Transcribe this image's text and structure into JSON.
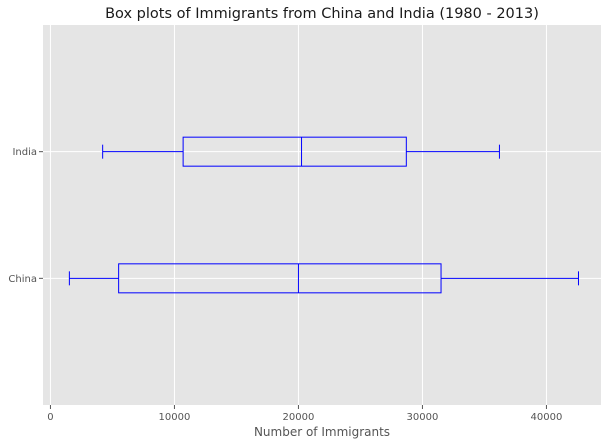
{
  "chart_data": {
    "type": "box",
    "orientation": "horizontal",
    "title": "Box plots of Immigrants from China and India (1980 - 2013)",
    "xlabel": "Number of Immigrants",
    "ylabel": "",
    "xlim": [
      -600,
      44400
    ],
    "xticks": [
      0,
      10000,
      20000,
      30000,
      40000
    ],
    "xtick_labels": [
      "0",
      "10000",
      "20000",
      "30000",
      "40000"
    ],
    "grid": true,
    "colors": {
      "background": "#e5e5e5",
      "grid": "#ffffff",
      "box": "#0000ff",
      "text": "#555555"
    },
    "categories": [
      "China",
      "India"
    ],
    "boxes": [
      {
        "label": "China",
        "whisker_low": 1527,
        "q1": 5500,
        "median": 20000,
        "q3": 31500,
        "whisker_high": 42584
      },
      {
        "label": "India",
        "whisker_low": 4211,
        "q1": 10700,
        "median": 20250,
        "q3": 28700,
        "whisker_high": 36210
      }
    ]
  }
}
